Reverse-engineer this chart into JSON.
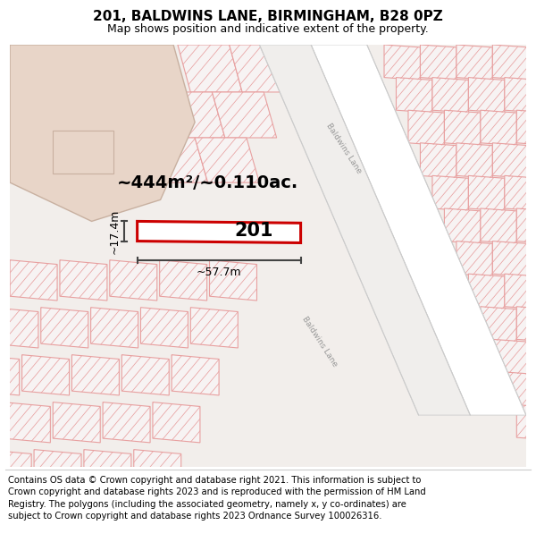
{
  "title": "201, BALDWINS LANE, BIRMINGHAM, B28 0PZ",
  "subtitle": "Map shows position and indicative extent of the property.",
  "footer": "Contains OS data © Crown copyright and database right 2021. This information is subject to Crown copyright and database rights 2023 and is reproduced with the permission of HM Land Registry. The polygons (including the associated geometry, namely x, y co-ordinates) are subject to Crown copyright and database rights 2023 Ordnance Survey 100026316.",
  "map_bg": "#f2eeeb",
  "road_fill": "#ffffff",
  "road_edge": "#bbbbbb",
  "parcel_fill": "#f7f3f3",
  "parcel_edge": "#e8a0a0",
  "hatch_color": "#e8a0a0",
  "big_bldg_fill": "#e8d5c8",
  "big_bldg_edge": "#c8b0a0",
  "highlight_color": "#cc0000",
  "dim_color": "#444444",
  "text_color": "#000000",
  "road_text_color": "#999999",
  "area_label": "~444m²/~0.110ac.",
  "width_label": "~57.7m",
  "height_label": "~17.4m",
  "property_label": "201",
  "road_label_1": "Baldwins Lane",
  "road_label_2": "Baldwins Lane",
  "title_fontsize": 11,
  "subtitle_fontsize": 9,
  "footer_fontsize": 7.2,
  "area_label_fontsize": 14,
  "property_label_fontsize": 15,
  "dim_fontsize": 9,
  "road_fontsize": 6.5
}
